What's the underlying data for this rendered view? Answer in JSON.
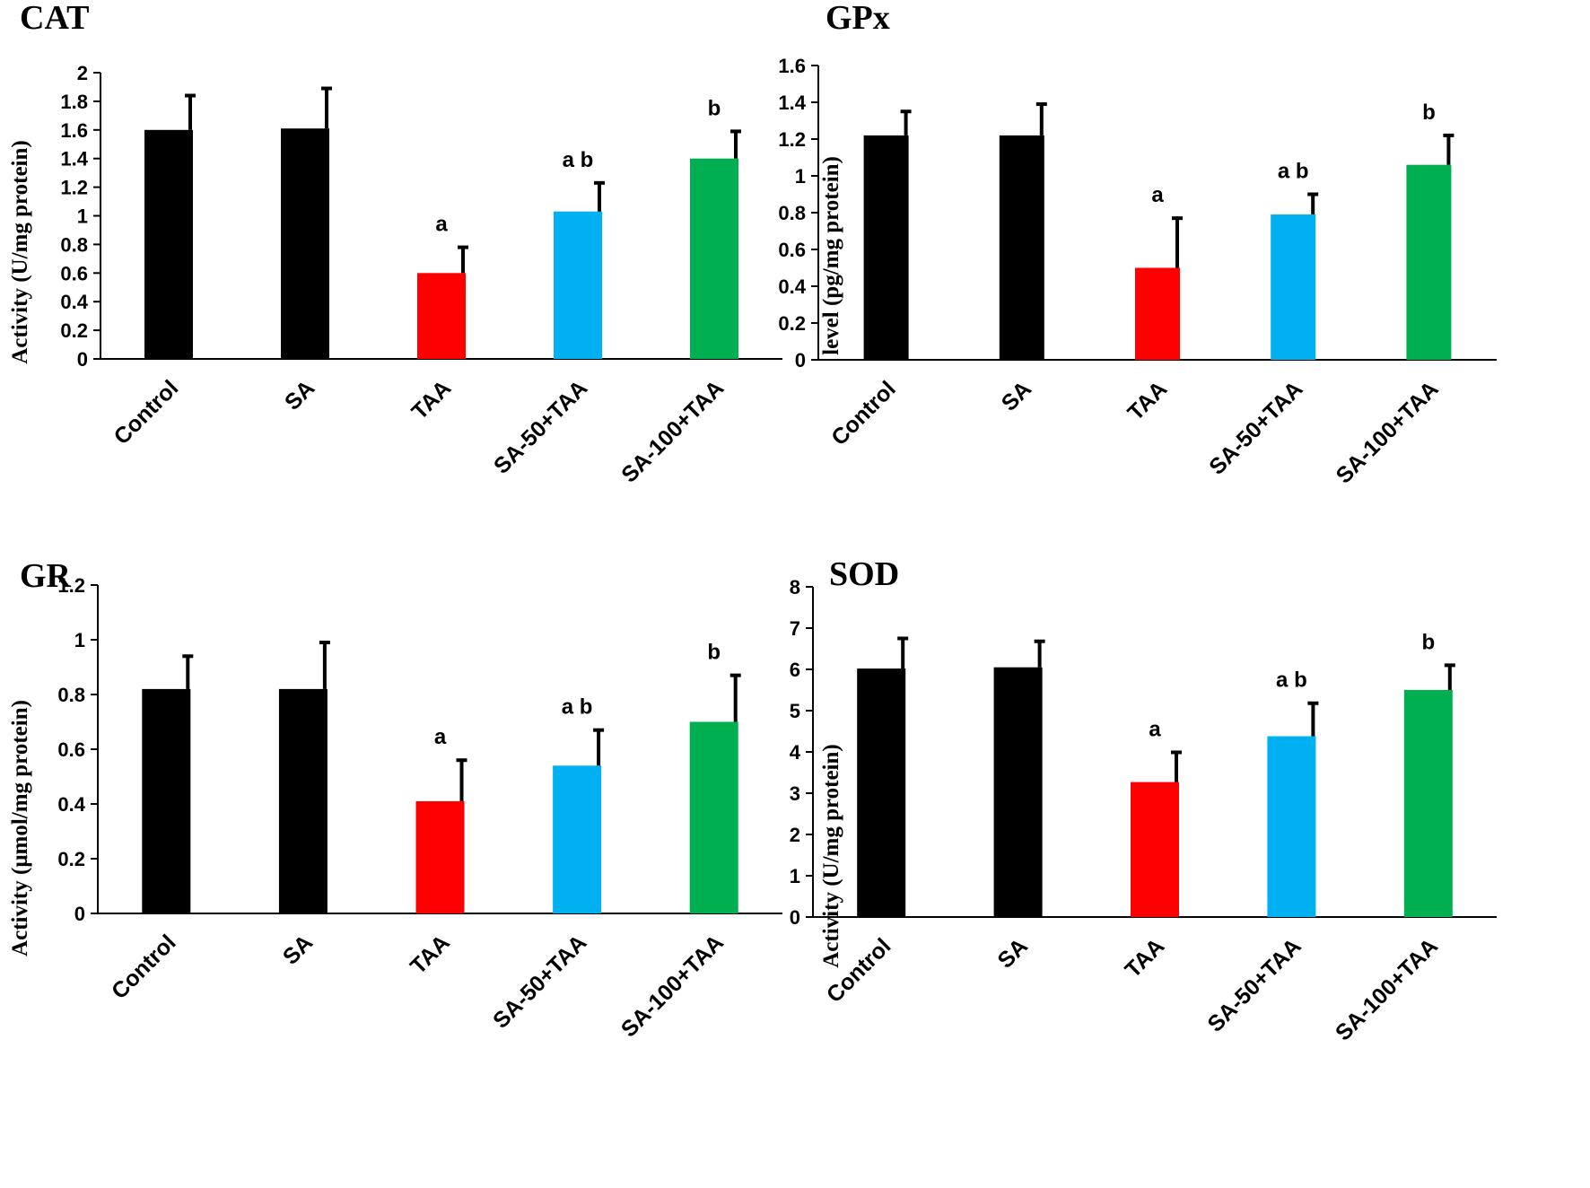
{
  "chart_data": [
    {
      "id": "cat",
      "type": "bar",
      "title": "CAT",
      "ylabel": "Activity (U/mg protein)",
      "xlabel": "",
      "ylim": [
        0,
        2
      ],
      "yticks": [
        "0",
        "0.2",
        "0.4",
        "0.6",
        "0.8",
        "1",
        "1.2",
        "1.4",
        "1.6",
        "1.8",
        "2"
      ],
      "categories": [
        "Control",
        "SA",
        "TAA",
        "SA-50+TAA",
        "SA-100+TAA"
      ],
      "values": [
        1.6,
        1.61,
        0.6,
        1.03,
        1.4
      ],
      "errors": [
        0.24,
        0.28,
        0.18,
        0.2,
        0.19
      ],
      "labels": [
        "",
        "",
        "a",
        "a b",
        "b"
      ],
      "colors": [
        "#000000",
        "#000000",
        "#ff0000",
        "#00b0f0",
        "#00b050"
      ]
    },
    {
      "id": "gpx",
      "type": "bar",
      "title": "GPx",
      "ylabel": "level (pg/mg protein)",
      "xlabel": "",
      "ylim": [
        0,
        1.6
      ],
      "yticks": [
        "0",
        "0.2",
        "0.4",
        "0.6",
        "0.8",
        "1",
        "1.2",
        "1.4",
        "1.6"
      ],
      "categories": [
        "Control",
        "SA",
        "TAA",
        "SA-50+TAA",
        "SA-100+TAA"
      ],
      "values": [
        1.22,
        1.22,
        0.5,
        0.79,
        1.06
      ],
      "errors": [
        0.13,
        0.17,
        0.27,
        0.11,
        0.16
      ],
      "labels": [
        "",
        "",
        "a",
        "a b",
        "b"
      ],
      "colors": [
        "#000000",
        "#000000",
        "#ff0000",
        "#00b0f0",
        "#00b050"
      ]
    },
    {
      "id": "gr",
      "type": "bar",
      "title": "GR",
      "ylabel": "Activity  (μmol/mg protein)",
      "xlabel": "",
      "ylim": [
        0,
        1.2
      ],
      "yticks": [
        "0",
        "0.2",
        "0.4",
        "0.6",
        "0.8",
        "1",
        "1.2"
      ],
      "categories": [
        "Control",
        "SA",
        "TAA",
        "SA-50+TAA",
        "SA-100+TAA"
      ],
      "values": [
        0.82,
        0.82,
        0.41,
        0.54,
        0.7
      ],
      "errors": [
        0.12,
        0.17,
        0.15,
        0.13,
        0.17
      ],
      "labels": [
        "",
        "",
        "a",
        "a b",
        "b"
      ],
      "colors": [
        "#000000",
        "#000000",
        "#ff0000",
        "#00b0f0",
        "#00b050"
      ]
    },
    {
      "id": "sod",
      "type": "bar",
      "title": "SOD",
      "ylabel": "Activity (U/mg protein)",
      "xlabel": "",
      "ylim": [
        0,
        8
      ],
      "yticks": [
        "0",
        "1",
        "2",
        "3",
        "4",
        "5",
        "6",
        "7",
        "8"
      ],
      "categories": [
        "Control",
        "SA",
        "TAA",
        "SA-50+TAA",
        "SA-100+TAA"
      ],
      "values": [
        6.02,
        6.05,
        3.27,
        4.38,
        5.5
      ],
      "errors": [
        0.73,
        0.63,
        0.72,
        0.8,
        0.6
      ],
      "labels": [
        "",
        "",
        "a",
        "a b",
        "b"
      ],
      "colors": [
        "#000000",
        "#000000",
        "#ff0000",
        "#00b0f0",
        "#00b050"
      ]
    }
  ]
}
